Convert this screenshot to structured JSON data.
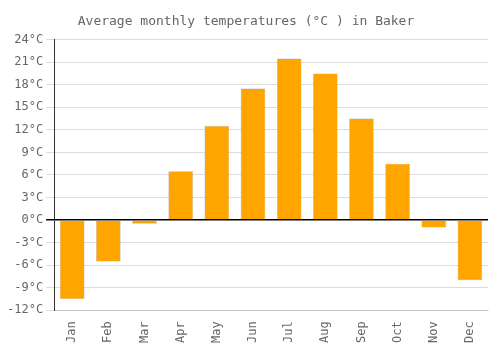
{
  "chart_data": {
    "type": "bar",
    "title": "Average monthly temperatures (°C ) in Baker",
    "categories": [
      "Jan",
      "Feb",
      "Mar",
      "Apr",
      "May",
      "Jun",
      "Jul",
      "Aug",
      "Sep",
      "Oct",
      "Nov",
      "Dec"
    ],
    "values": [
      -10.5,
      -5.5,
      -0.5,
      6.5,
      12.5,
      17.5,
      21.5,
      19.5,
      13.5,
      7.5,
      -1.0,
      -8.0
    ],
    "color": "#FFA500",
    "ylim": [
      -12,
      24
    ],
    "yticks": [
      {
        "value": -12,
        "label": "-12°C"
      },
      {
        "value": -9,
        "label": "-9°C"
      },
      {
        "value": -6,
        "label": "-6°C"
      },
      {
        "value": -3,
        "label": "-3°C"
      },
      {
        "value": 0,
        "label": "0°C"
      },
      {
        "value": 3,
        "label": "3°C"
      },
      {
        "value": 6,
        "label": "6°C"
      },
      {
        "value": 9,
        "label": "9°C"
      },
      {
        "value": 12,
        "label": "12°C"
      },
      {
        "value": 15,
        "label": "15°C"
      },
      {
        "value": 18,
        "label": "18°C"
      },
      {
        "value": 21,
        "label": "21°C"
      },
      {
        "value": 24,
        "label": "24°C"
      }
    ],
    "grid": true
  }
}
